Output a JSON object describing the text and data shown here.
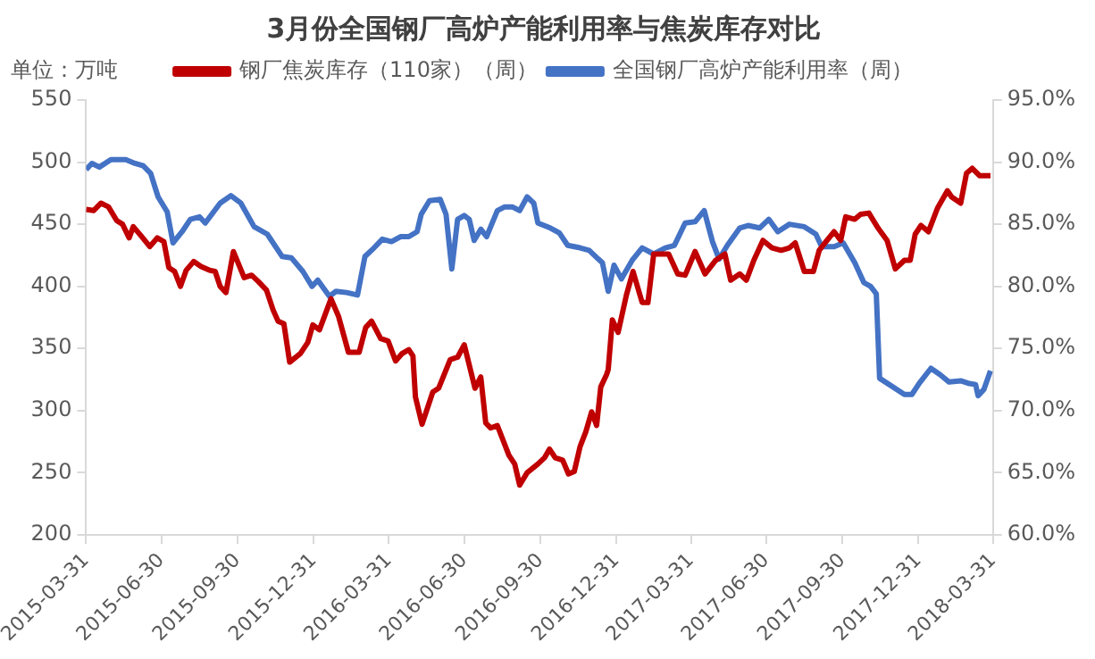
{
  "chart_data": {
    "type": "line",
    "title": "3月份全国钢厂高炉产能利用率与焦炭库存对比",
    "ylabel": "单位：万吨",
    "xlim": [
      "2015-03-31",
      "2018-03-31"
    ],
    "xticks": [
      "2015-03-31",
      "2015-06-30",
      "2015-09-30",
      "2015-12-31",
      "2016-03-31",
      "2016-06-30",
      "2016-09-30",
      "2016-12-31",
      "2017-03-31",
      "2017-06-30",
      "2017-09-30",
      "2017-12-31",
      "2018-03-31"
    ],
    "ylim": [
      200,
      550
    ],
    "yticks": [
      200,
      250,
      300,
      350,
      400,
      450,
      500,
      550
    ],
    "y2lim": [
      60,
      95
    ],
    "y2ticks": [
      {
        "value": 60,
        "label": "60.0%"
      },
      {
        "value": 65,
        "label": "65.0%"
      },
      {
        "value": 70,
        "label": "70.0%"
      },
      {
        "value": 75,
        "label": "75.0%"
      },
      {
        "value": 80,
        "label": "80.0%"
      },
      {
        "value": 85,
        "label": "85.0%"
      },
      {
        "value": 90,
        "label": "90.0%"
      },
      {
        "value": 95,
        "label": "95.0%"
      }
    ],
    "grid": false,
    "legend": "top",
    "marker": "none",
    "line_style": "solid",
    "series": [
      {
        "name": "钢厂焦炭库存（110家）（周）",
        "color": "#c00000",
        "x": [
          "2015-03-31",
          "2015-04-09",
          "2015-04-18",
          "2015-04-27",
          "2015-05-07",
          "2015-05-14",
          "2015-05-22",
          "2015-05-27",
          "2015-06-05",
          "2015-06-16",
          "2015-06-25",
          "2015-07-03",
          "2015-07-09",
          "2015-07-16",
          "2015-07-23",
          "2015-07-30",
          "2015-08-08",
          "2015-08-17",
          "2015-08-27",
          "2015-09-03",
          "2015-09-09",
          "2015-09-16",
          "2015-09-25",
          "2015-10-08",
          "2015-10-17",
          "2015-10-25",
          "2015-11-04",
          "2015-11-12",
          "2015-11-18",
          "2015-11-25",
          "2015-12-02",
          "2015-12-15",
          "2015-12-24",
          "2015-12-30",
          "2016-01-07",
          "2016-01-21",
          "2016-01-30",
          "2016-02-11",
          "2016-02-24",
          "2016-03-03",
          "2016-03-10",
          "2016-03-21",
          "2016-03-30",
          "2016-04-08",
          "2016-04-16",
          "2016-04-24",
          "2016-04-29",
          "2016-05-02",
          "2016-05-10",
          "2016-05-23",
          "2016-05-30",
          "2016-06-13",
          "2016-06-22",
          "2016-06-30",
          "2016-07-13",
          "2016-07-20",
          "2016-07-26",
          "2016-08-01",
          "2016-08-09",
          "2016-08-23",
          "2016-08-30",
          "2016-09-05",
          "2016-09-14",
          "2016-09-27",
          "2016-10-05",
          "2016-10-11",
          "2016-10-18",
          "2016-10-27",
          "2016-11-03",
          "2016-11-10",
          "2016-11-17",
          "2016-11-24",
          "2016-12-01",
          "2016-12-07",
          "2016-12-12",
          "2016-12-19",
          "2016-12-21",
          "2016-12-26",
          "2017-01-02",
          "2017-01-12",
          "2017-01-20",
          "2017-01-31",
          "2017-02-07",
          "2017-02-14",
          "2017-03-04",
          "2017-03-15",
          "2017-03-24",
          "2017-04-05",
          "2017-04-17",
          "2017-04-30",
          "2017-05-11",
          "2017-05-18",
          "2017-05-29",
          "2017-06-06",
          "2017-06-15",
          "2017-06-26",
          "2017-07-07",
          "2017-07-18",
          "2017-07-28",
          "2017-08-04",
          "2017-08-15",
          "2017-08-26",
          "2017-09-02",
          "2017-09-09",
          "2017-09-20",
          "2017-09-28",
          "2017-10-04",
          "2017-10-15",
          "2017-10-22",
          "2017-11-01",
          "2017-11-12",
          "2017-11-23",
          "2017-12-03",
          "2017-12-14",
          "2017-12-21",
          "2017-12-27",
          "2018-01-03",
          "2018-01-12",
          "2018-01-23",
          "2018-02-04",
          "2018-02-09",
          "2018-02-20",
          "2018-02-27",
          "2018-03-06",
          "2018-03-15",
          "2018-03-28"
        ],
        "values": [
          462,
          461,
          467,
          464,
          453,
          450,
          439,
          448,
          441,
          432,
          439,
          436,
          415,
          412,
          400,
          413,
          420,
          416,
          413,
          412,
          400,
          395,
          428,
          407,
          409,
          404,
          397,
          381,
          372,
          370,
          339,
          346,
          355,
          369,
          365,
          390,
          376,
          347,
          347,
          367,
          372,
          358,
          356,
          340,
          346,
          349,
          344,
          311,
          289,
          315,
          318,
          341,
          343,
          353,
          318,
          327,
          290,
          286,
          288,
          264,
          257,
          240,
          250,
          257,
          262,
          269,
          262,
          260,
          249,
          251,
          271,
          283,
          299,
          288,
          319,
          329,
          333,
          373,
          363,
          393,
          412,
          387,
          387,
          426,
          426,
          410,
          409,
          428,
          410,
          421,
          426,
          405,
          410,
          405,
          421,
          437,
          431,
          429,
          431,
          435,
          412,
          412,
          429,
          435,
          444,
          437,
          456,
          454,
          458,
          459,
          447,
          437,
          414,
          421,
          421,
          442,
          449,
          444,
          463,
          477,
          472,
          467,
          491,
          495,
          489,
          489
        ]
      },
      {
        "name": "全国钢厂高炉产能利用率（周）",
        "color": "#4472c4",
        "axis": "y2",
        "x": [
          "2015-03-31",
          "2015-04-07",
          "2015-04-16",
          "2015-04-30",
          "2015-05-18",
          "2015-05-29",
          "2015-06-08",
          "2015-06-17",
          "2015-06-26",
          "2015-07-07",
          "2015-07-14",
          "2015-07-25",
          "2015-08-04",
          "2015-08-15",
          "2015-08-22",
          "2015-09-09",
          "2015-09-22",
          "2015-10-04",
          "2015-10-20",
          "2015-11-05",
          "2015-11-23",
          "2015-12-04",
          "2015-12-18",
          "2015-12-29",
          "2016-01-05",
          "2016-01-19",
          "2016-01-27",
          "2016-02-09",
          "2016-02-22",
          "2016-03-02",
          "2016-03-13",
          "2016-03-23",
          "2016-04-03",
          "2016-04-14",
          "2016-04-24",
          "2016-05-04",
          "2016-05-09",
          "2016-05-19",
          "2016-06-01",
          "2016-06-08",
          "2016-06-15",
          "2016-06-22",
          "2016-06-30",
          "2016-07-06",
          "2016-07-12",
          "2016-07-20",
          "2016-07-27",
          "2016-08-09",
          "2016-08-18",
          "2016-08-27",
          "2016-09-05",
          "2016-09-14",
          "2016-09-22",
          "2016-09-27",
          "2016-10-12",
          "2016-10-23",
          "2016-11-02",
          "2016-11-17",
          "2016-11-28",
          "2016-12-09",
          "2016-12-14",
          "2016-12-21",
          "2016-12-28",
          "2017-01-06",
          "2017-01-19",
          "2017-01-31",
          "2017-02-14",
          "2017-02-28",
          "2017-03-11",
          "2017-03-24",
          "2017-04-05",
          "2017-04-16",
          "2017-04-26",
          "2017-05-04",
          "2017-05-14",
          "2017-05-29",
          "2017-06-08",
          "2017-06-22",
          "2017-07-03",
          "2017-07-14",
          "2017-07-28",
          "2017-08-15",
          "2017-08-29",
          "2017-09-05",
          "2017-09-20",
          "2017-10-01",
          "2017-10-15",
          "2017-10-26",
          "2017-11-03",
          "2017-11-10",
          "2017-11-14",
          "2017-12-14",
          "2017-12-23",
          "2018-01-01",
          "2018-01-15",
          "2018-01-26",
          "2018-02-06",
          "2018-02-20",
          "2018-03-01",
          "2018-03-10",
          "2018-03-13",
          "2018-03-20",
          "2018-03-28"
        ],
        "values": [
          89.4,
          89.9,
          89.6,
          90.2,
          90.2,
          89.9,
          89.7,
          89.1,
          87.2,
          86.0,
          83.5,
          84.4,
          85.4,
          85.6,
          85.1,
          86.7,
          87.3,
          86.7,
          84.8,
          84.2,
          82.4,
          82.3,
          81.2,
          80.0,
          80.5,
          79.2,
          79.6,
          79.5,
          79.3,
          82.4,
          83.1,
          83.8,
          83.6,
          84.0,
          84.0,
          84.4,
          85.8,
          86.9,
          87.0,
          85.8,
          81.4,
          85.4,
          85.7,
          85.4,
          83.7,
          84.6,
          84.0,
          86.1,
          86.4,
          86.4,
          86.1,
          87.2,
          86.7,
          85.1,
          84.7,
          84.3,
          83.3,
          83.1,
          82.9,
          82.2,
          81.9,
          79.6,
          81.7,
          80.6,
          82.1,
          83.1,
          82.6,
          83.1,
          83.3,
          85.1,
          85.2,
          86.1,
          83.6,
          82.2,
          83.3,
          84.7,
          84.9,
          84.7,
          85.4,
          84.4,
          85.0,
          84.8,
          84.2,
          83.2,
          83.2,
          83.5,
          81.9,
          80.3,
          80.0,
          79.4,
          72.6,
          71.3,
          71.3,
          72.2,
          73.4,
          72.9,
          72.3,
          72.4,
          72.2,
          72.1,
          71.2,
          71.7,
          73.2
        ]
      }
    ]
  }
}
